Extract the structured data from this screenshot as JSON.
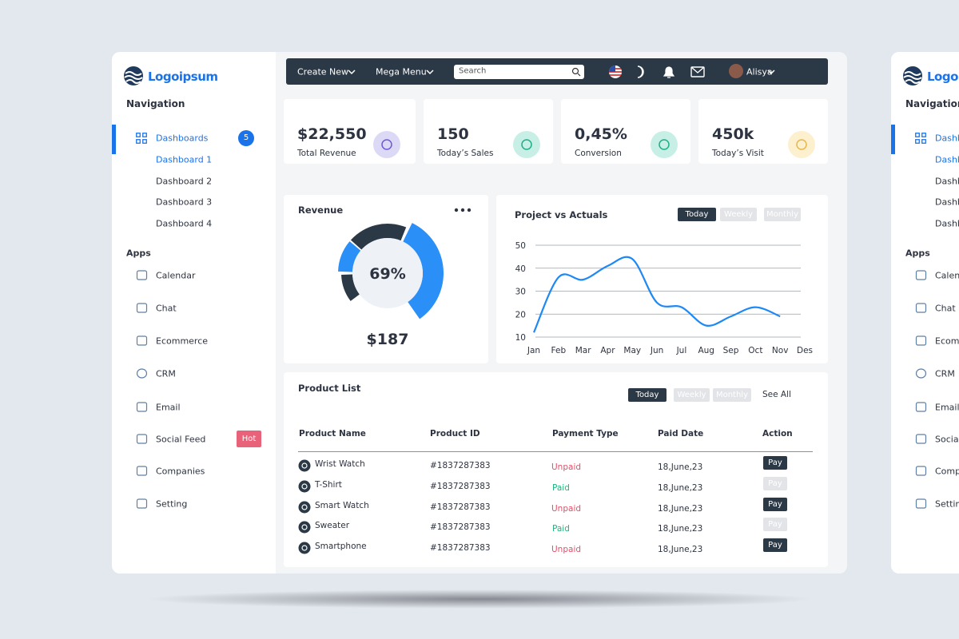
{
  "sidebar": {
    "logo": "Logoipsum",
    "nav_title": "Navigation",
    "dashboards": {
      "label": "Dashboards",
      "badge": "5",
      "items": [
        "Dashboard 1",
        "Dashboard 2",
        "Dashboard 3",
        "Dashboard 4"
      ]
    },
    "apps_title": "Apps",
    "apps": [
      {
        "label": "Calendar"
      },
      {
        "label": "Chat"
      },
      {
        "label": "Ecommerce"
      },
      {
        "label": "CRM"
      },
      {
        "label": "Email"
      },
      {
        "label": "Social Feed",
        "badge": "Hot"
      },
      {
        "label": "Companies"
      },
      {
        "label": "Setting"
      }
    ]
  },
  "topbar": {
    "menus": [
      "Create New",
      "Mega Menu"
    ],
    "search_placeholder": "Search",
    "user": "Alisya"
  },
  "stats": [
    {
      "value": "$22,550",
      "label": "Total Revenue"
    },
    {
      "value": "150",
      "label": "Today’s Sales"
    },
    {
      "value": "0,45%",
      "label": "Conversion"
    },
    {
      "value": "450k",
      "label": "Today’s Visit"
    }
  ],
  "revenue": {
    "title": "Revenue",
    "percent": "69%",
    "amount": "$187"
  },
  "chart_data": {
    "type": "line",
    "title": "Project vs Actuals",
    "filters": [
      "Today",
      "Weekly",
      "Monthly"
    ],
    "active_filter": 0,
    "categories": [
      "Jan",
      "Feb",
      "Mar",
      "Apr",
      "May",
      "Jun",
      "Jul",
      "Aug",
      "Sep",
      "Oct",
      "Nov",
      "Des"
    ],
    "series": [
      {
        "color": "#1e88f5",
        "values": [
          12,
          36,
          35,
          41,
          44,
          25,
          23,
          15,
          19,
          23,
          19,
          null
        ]
      }
    ],
    "ylim": [
      10,
      50
    ],
    "yticks": [
      10,
      20,
      30,
      40,
      50
    ],
    "grid": true
  },
  "product_list": {
    "title": "Product List",
    "filters": [
      "Today",
      "Weekly",
      "Monthly"
    ],
    "active_filter": 0,
    "see_all": "See All",
    "columns": [
      "Product Name",
      "Product ID",
      "Payment Type",
      "Paid Date",
      "Action"
    ],
    "rows": [
      {
        "name": "Wrist Watch",
        "id": "#1837287383",
        "payment": "Unpaid",
        "paid": false,
        "date": "18,June,23",
        "action": "Pay"
      },
      {
        "name": "T-Shirt",
        "id": "#1837287383",
        "payment": "Paid",
        "paid": true,
        "date": "18,June,23",
        "action": "Pay"
      },
      {
        "name": "Smart Watch",
        "id": "#1837287383",
        "payment": "Unpaid",
        "paid": false,
        "date": "18,June,23",
        "action": "Pay"
      },
      {
        "name": "Sweater",
        "id": "#1837287383",
        "payment": "Paid",
        "paid": true,
        "date": "18,June,23",
        "action": "Pay"
      },
      {
        "name": "Smartphone",
        "id": "#1837287383",
        "payment": "Unpaid",
        "paid": false,
        "date": "18,June,23",
        "action": "Pay"
      }
    ]
  }
}
